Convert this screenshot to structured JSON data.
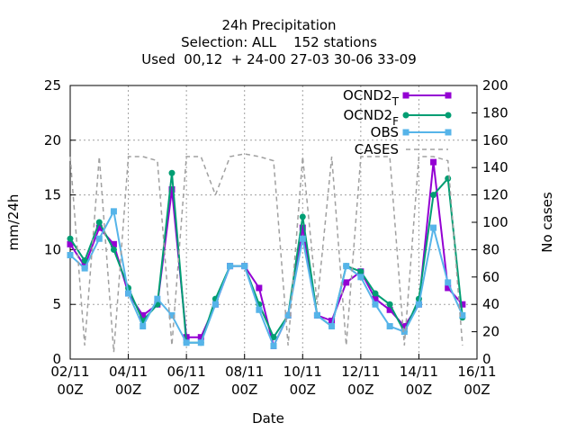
{
  "chart_data": {
    "type": "line",
    "title": "24h Precipitation",
    "subtitle": [
      "Selection: ALL    152 stations",
      "Used  00,12  + 24-00 27-03 30-06 33-09"
    ],
    "xlabel": "Date",
    "ylabel": "mm/24h",
    "y2label": "No cases",
    "x": [
      "02/11 00Z",
      "02/11 12Z",
      "03/11 00Z",
      "03/11 12Z",
      "04/11 00Z",
      "04/11 12Z",
      "05/11 00Z",
      "05/11 12Z",
      "06/11 00Z",
      "06/11 12Z",
      "07/11 00Z",
      "07/11 12Z",
      "08/11 00Z",
      "08/11 12Z",
      "09/11 00Z",
      "09/11 12Z",
      "10/11 00Z",
      "10/11 12Z",
      "11/11 00Z",
      "11/11 12Z",
      "12/11 00Z",
      "12/11 12Z",
      "13/11 00Z",
      "13/11 12Z",
      "14/11 00Z",
      "14/11 12Z",
      "15/11 00Z",
      "15/11 12Z"
    ],
    "xlim": [
      "02/11 00Z",
      "16/11 00Z"
    ],
    "xticks": [
      "02/11 00Z",
      "04/11 00Z",
      "06/11 00Z",
      "08/11 00Z",
      "10/11 00Z",
      "12/11 00Z",
      "14/11 00Z",
      "16/11 00Z"
    ],
    "ylim": [
      0,
      25
    ],
    "yticks": [
      0,
      5,
      10,
      15,
      20,
      25
    ],
    "y2lim": [
      0,
      200
    ],
    "y2ticks": [
      0,
      20,
      40,
      60,
      80,
      100,
      120,
      140,
      160,
      180,
      200
    ],
    "grid": true,
    "legend": "top-right",
    "series": [
      {
        "name": "OCND2T",
        "color": "#9400d3",
        "marker": "square",
        "values": [
          10.5,
          8.5,
          12,
          10.5,
          6,
          4,
          5,
          15.5,
          2,
          2,
          5,
          8.5,
          8.5,
          6.5,
          1.2,
          4,
          12,
          4,
          3.5,
          7,
          8,
          5.5,
          4.5,
          3,
          5,
          18,
          6.5,
          5
        ]
      },
      {
        "name": "OCND2F",
        "color": "#009e73",
        "marker": "circle",
        "values": [
          11,
          9,
          12.5,
          10,
          6.5,
          3.5,
          5,
          17,
          1.5,
          1.5,
          5.5,
          8.5,
          8.5,
          5,
          2,
          4,
          13,
          4,
          3,
          8.5,
          8,
          6,
          5,
          2.5,
          5.5,
          15,
          16.5,
          3.8
        ]
      },
      {
        "name": "OBS",
        "color": "#56b4e9",
        "marker": "square",
        "values": [
          9.5,
          8.3,
          11,
          13.5,
          6,
          3,
          5.5,
          4,
          1.5,
          1.5,
          5,
          8.5,
          8.5,
          4.5,
          1.2,
          4,
          11,
          4,
          3,
          8.5,
          7.5,
          5,
          3,
          2.5,
          5,
          12,
          7,
          4
        ]
      },
      {
        "name": "CASES",
        "color": "#a0a0a0",
        "axis": "y2",
        "dashed": true,
        "values": [
          148,
          10,
          148,
          5,
          148,
          148,
          145,
          10,
          148,
          148,
          120,
          148,
          150,
          148,
          145,
          10,
          148,
          40,
          148,
          10,
          148,
          148,
          148,
          10,
          148,
          148,
          145,
          10
        ]
      }
    ]
  }
}
